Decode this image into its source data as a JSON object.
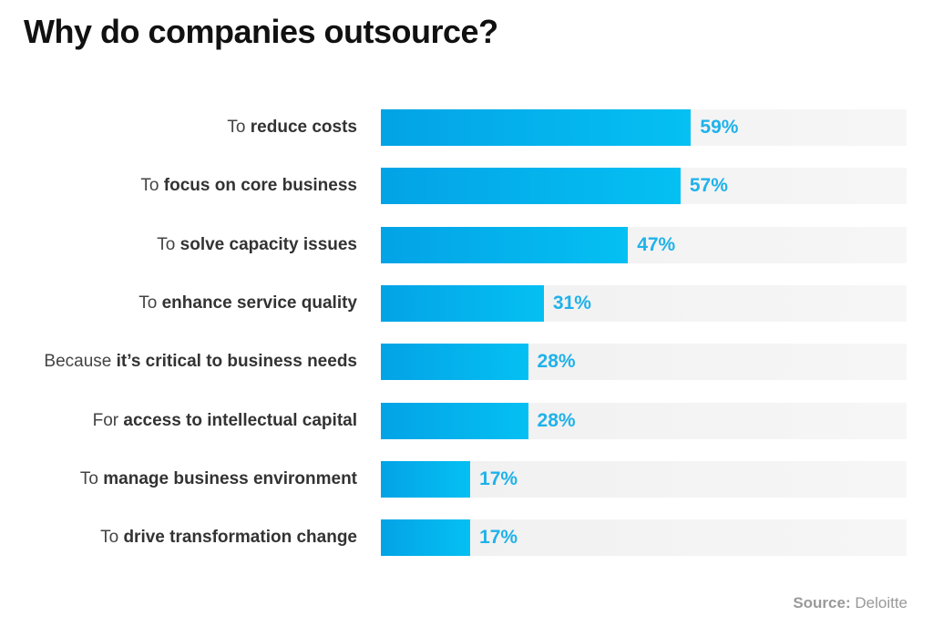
{
  "chart_data": {
    "type": "bar",
    "orientation": "horizontal",
    "title": "Why do companies outsource?",
    "categories": [
      {
        "prefix": "To",
        "emphasis": "reduce costs"
      },
      {
        "prefix": "To",
        "emphasis": "focus on core business"
      },
      {
        "prefix": "To",
        "emphasis": "solve capacity issues"
      },
      {
        "prefix": "To",
        "emphasis": "enhance service quality"
      },
      {
        "prefix": "Because",
        "emphasis": "it’s critical to business needs"
      },
      {
        "prefix": "For",
        "emphasis": "access to intellectual capital"
      },
      {
        "prefix": "To",
        "emphasis": "manage business environment"
      },
      {
        "prefix": "To",
        "emphasis": "drive transformation change"
      }
    ],
    "values": [
      59,
      57,
      47,
      31,
      28,
      28,
      17,
      17
    ],
    "value_labels": [
      "59%",
      "57%",
      "47%",
      "31%",
      "28%",
      "28%",
      "17%",
      "17%"
    ],
    "xlim": [
      0,
      100
    ],
    "grid": false,
    "colors": {
      "bar_start": "#03a3e6",
      "bar_end": "#05c0f2",
      "track": "#f0f0f0",
      "value_text": "#1fb2ea"
    }
  },
  "source": {
    "label": "Source:",
    "value": "Deloitte"
  }
}
